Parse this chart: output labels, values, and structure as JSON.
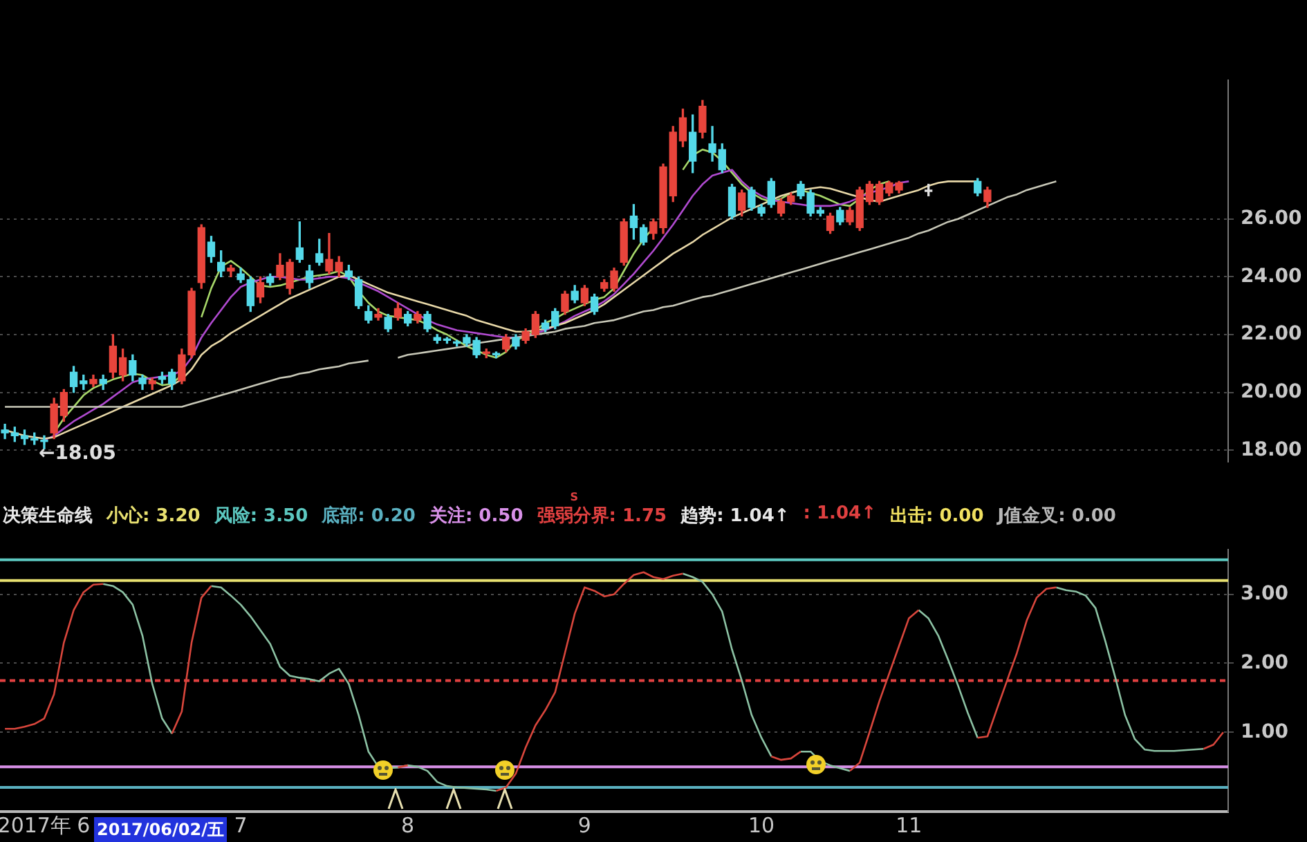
{
  "chart_data": [
    {
      "type": "candlestick",
      "categories": [
        null,
        null,
        null,
        null,
        null,
        null,
        null,
        null,
        null,
        null,
        null,
        null,
        null,
        null,
        null,
        null,
        null,
        null,
        null,
        null,
        null,
        null,
        null,
        null,
        null,
        null,
        null,
        null,
        null,
        null,
        null,
        null,
        null,
        null,
        null,
        null,
        null,
        null,
        null,
        null,
        null,
        null,
        null,
        null,
        null,
        null,
        null,
        null,
        null,
        null,
        null,
        null,
        null,
        null,
        null,
        null,
        null,
        null,
        null,
        null,
        null,
        null,
        null,
        null,
        null,
        null,
        null,
        null,
        null,
        null,
        null,
        null,
        null,
        null,
        null,
        null,
        null,
        null,
        null,
        null,
        null,
        null,
        null,
        null,
        null,
        null,
        null,
        null,
        null,
        null,
        null,
        null,
        null,
        null,
        null,
        null,
        null,
        null,
        null,
        null,
        null,
        null,
        null,
        null,
        null,
        null,
        null,
        null,
        null,
        null,
        null,
        null,
        null,
        null,
        null,
        null,
        null,
        null,
        null,
        null,
        null,
        null,
        null,
        null,
        null
      ],
      "ohlc": [
        [
          18.7,
          18.9,
          18.4,
          18.6
        ],
        [
          18.6,
          18.8,
          18.3,
          18.5
        ],
        [
          18.5,
          18.7,
          18.2,
          18.4
        ],
        [
          18.4,
          18.6,
          18.2,
          18.35
        ],
        [
          18.35,
          18.5,
          18.05,
          18.3
        ],
        [
          18.6,
          19.8,
          18.4,
          19.6
        ],
        [
          19.2,
          20.1,
          19.0,
          20.0
        ],
        [
          20.7,
          20.9,
          20.0,
          20.2
        ],
        [
          20.4,
          20.6,
          20.1,
          20.3
        ],
        [
          20.3,
          20.6,
          20.2,
          20.45
        ],
        [
          20.45,
          20.6,
          20.1,
          20.3
        ],
        [
          20.7,
          22.0,
          20.5,
          21.6
        ],
        [
          20.6,
          21.5,
          20.4,
          21.2
        ],
        [
          21.1,
          21.3,
          20.4,
          20.6
        ],
        [
          20.5,
          20.6,
          20.1,
          20.3
        ],
        [
          20.3,
          20.5,
          20.1,
          20.4
        ],
        [
          20.55,
          20.7,
          20.3,
          20.45
        ],
        [
          20.7,
          20.8,
          20.1,
          20.3
        ],
        [
          20.4,
          21.5,
          20.3,
          21.3
        ],
        [
          21.3,
          23.6,
          21.2,
          23.5
        ],
        [
          23.8,
          25.8,
          23.6,
          25.7
        ],
        [
          25.2,
          25.4,
          24.5,
          24.7
        ],
        [
          24.5,
          24.9,
          24.0,
          24.2
        ],
        [
          24.2,
          24.4,
          24.0,
          24.3
        ],
        [
          24.1,
          24.3,
          23.8,
          23.9
        ],
        [
          23.9,
          24.0,
          22.8,
          23.0
        ],
        [
          23.3,
          24.0,
          23.1,
          23.8
        ],
        [
          24.0,
          24.1,
          23.7,
          23.8
        ],
        [
          24.0,
          24.8,
          23.9,
          24.4
        ],
        [
          23.6,
          24.6,
          23.4,
          24.5
        ],
        [
          25.0,
          25.9,
          24.5,
          24.6
        ],
        [
          24.2,
          24.4,
          23.6,
          23.8
        ],
        [
          24.8,
          25.3,
          24.4,
          24.5
        ],
        [
          24.2,
          25.5,
          24.1,
          24.6
        ],
        [
          24.2,
          24.7,
          24.0,
          24.5
        ],
        [
          24.2,
          24.4,
          23.9,
          24.0
        ],
        [
          23.9,
          24.0,
          22.9,
          23.0
        ],
        [
          22.8,
          23.0,
          22.4,
          22.5
        ],
        [
          22.6,
          22.9,
          22.5,
          22.7
        ],
        [
          22.6,
          22.7,
          22.1,
          22.2
        ],
        [
          22.6,
          23.1,
          22.5,
          22.9
        ],
        [
          22.7,
          22.8,
          22.3,
          22.4
        ],
        [
          22.5,
          22.8,
          22.4,
          22.7
        ],
        [
          22.7,
          22.8,
          22.1,
          22.2
        ],
        [
          21.9,
          22.0,
          21.7,
          21.8
        ],
        [
          21.85,
          21.9,
          21.7,
          21.8
        ],
        [
          21.75,
          21.8,
          21.6,
          21.7
        ],
        [
          21.9,
          22.0,
          21.6,
          21.7
        ],
        [
          21.8,
          21.9,
          21.2,
          21.3
        ],
        [
          21.35,
          21.5,
          21.2,
          21.4
        ],
        [
          21.35,
          21.4,
          21.2,
          21.3
        ],
        [
          21.5,
          22.0,
          21.4,
          21.9
        ],
        [
          21.9,
          22.0,
          21.5,
          21.6
        ],
        [
          21.8,
          22.2,
          21.7,
          22.1
        ],
        [
          22.0,
          22.8,
          21.9,
          22.7
        ],
        [
          22.4,
          22.5,
          22.1,
          22.2
        ],
        [
          22.8,
          22.9,
          22.2,
          22.3
        ],
        [
          22.8,
          23.5,
          22.7,
          23.4
        ],
        [
          23.5,
          23.7,
          23.1,
          23.2
        ],
        [
          23.1,
          23.7,
          23.0,
          23.6
        ],
        [
          23.3,
          23.4,
          22.7,
          22.8
        ],
        [
          23.6,
          23.9,
          23.5,
          23.8
        ],
        [
          23.6,
          24.3,
          23.5,
          24.2
        ],
        [
          24.5,
          26.0,
          24.4,
          25.9
        ],
        [
          26.1,
          26.5,
          25.3,
          25.7
        ],
        [
          25.7,
          25.8,
          25.1,
          25.2
        ],
        [
          25.5,
          26.0,
          25.3,
          25.9
        ],
        [
          25.7,
          27.9,
          25.5,
          27.8
        ],
        [
          26.8,
          29.2,
          26.6,
          29.0
        ],
        [
          28.7,
          29.8,
          28.5,
          29.5
        ],
        [
          29.0,
          29.6,
          27.6,
          28.0
        ],
        [
          29.0,
          30.1,
          28.8,
          29.9
        ],
        [
          28.6,
          29.2,
          28.0,
          28.3
        ],
        [
          28.4,
          28.6,
          27.6,
          27.7
        ],
        [
          27.1,
          27.2,
          26.0,
          26.1
        ],
        [
          26.3,
          27.0,
          26.1,
          26.9
        ],
        [
          27.0,
          27.1,
          26.3,
          26.4
        ],
        [
          26.4,
          26.5,
          26.1,
          26.2
        ],
        [
          27.3,
          27.4,
          26.4,
          26.5
        ],
        [
          26.2,
          26.7,
          26.1,
          26.6
        ],
        [
          26.6,
          26.9,
          26.5,
          26.8
        ],
        [
          27.2,
          27.3,
          26.7,
          26.8
        ],
        [
          26.9,
          27.0,
          26.1,
          26.2
        ],
        [
          26.3,
          26.4,
          26.1,
          26.2
        ],
        [
          25.6,
          26.2,
          25.5,
          26.1
        ],
        [
          26.3,
          26.4,
          25.8,
          25.9
        ],
        [
          25.9,
          26.4,
          25.8,
          26.3
        ],
        [
          25.7,
          27.1,
          25.6,
          27.0
        ],
        [
          26.6,
          27.3,
          26.5,
          27.2
        ],
        [
          26.6,
          27.3,
          26.5,
          27.2
        ],
        [
          26.9,
          27.3,
          26.8,
          27.25
        ],
        [
          27.0,
          27.3,
          26.9,
          27.25
        ],
        null,
        null,
        [
          26.95,
          27.2,
          26.8,
          27.0
        ],
        null,
        null,
        null,
        null,
        [
          27.3,
          27.4,
          26.8,
          26.9
        ],
        [
          26.6,
          27.1,
          26.4,
          27.0
        ],
        null,
        null,
        null,
        null,
        null,
        null,
        null,
        null,
        null,
        null,
        null,
        null,
        null,
        null,
        null,
        null,
        null,
        null,
        null,
        null,
        null,
        null,
        null,
        null
      ],
      "colors": [
        "#54d8e8",
        "#54d8e8",
        "#54d8e8",
        "#54d8e8",
        "#54d8e8",
        "#e8453c",
        "#e8453c",
        "#54d8e8",
        "#54d8e8",
        "#e8453c",
        "#54d8e8",
        "#e8453c",
        "#e8453c",
        "#54d8e8",
        "#54d8e8",
        "#e8453c",
        "#54d8e8",
        "#54d8e8",
        "#e8453c",
        "#e8453c",
        "#e8453c",
        "#54d8e8",
        "#54d8e8",
        "#e8453c",
        "#54d8e8",
        "#54d8e8",
        "#e8453c",
        "#54d8e8",
        "#e8453c",
        "#e8453c",
        "#54d8e8",
        "#54d8e8",
        "#54d8e8",
        "#e8453c",
        "#e8453c",
        "#54d8e8",
        "#54d8e8",
        "#54d8e8",
        "#e8453c",
        "#54d8e8",
        "#e8453c",
        "#54d8e8",
        "#e8453c",
        "#54d8e8",
        "#54d8e8",
        "#54d8e8",
        "#54d8e8",
        "#54d8e8",
        "#54d8e8",
        "#e8453c",
        "#54d8e8",
        "#e8453c",
        "#54d8e8",
        "#e8453c",
        "#e8453c",
        "#54d8e8",
        "#54d8e8",
        "#e8453c",
        "#54d8e8",
        "#e8453c",
        "#54d8e8",
        "#e8453c",
        "#e8453c",
        "#e8453c",
        "#54d8e8",
        "#54d8e8",
        "#e8453c",
        "#e8453c",
        "#e8453c",
        "#e8453c",
        "#54d8e8",
        "#e8453c",
        "#54d8e8",
        "#54d8e8",
        "#54d8e8",
        "#e8453c",
        "#54d8e8",
        "#54d8e8",
        "#54d8e8",
        "#e8453c",
        "#e8453c",
        "#54d8e8",
        "#54d8e8",
        "#54d8e8",
        "#e8453c",
        "#54d8e8",
        "#e8453c",
        "#e8453c",
        "#e8453c",
        "#e8453c",
        "#e8453c",
        "#e8453c",
        null,
        null,
        "#e0e0e0",
        null,
        null,
        null,
        null,
        "#54d8e8",
        "#e8453c",
        null,
        null,
        null,
        null,
        null,
        null,
        null,
        null,
        null,
        null,
        null,
        null,
        null,
        null,
        null,
        null,
        null,
        null,
        null,
        null,
        null,
        null,
        null,
        null
      ],
      "series": [
        {
          "type": "line",
          "color": "#c8c8b8",
          "values": [
            19.5,
            19.5,
            19.5,
            19.5,
            19.5,
            19.5,
            19.5,
            19.5,
            19.5,
            19.5,
            19.5,
            19.5,
            19.5,
            19.5,
            19.5,
            19.5,
            19.5,
            19.5,
            19.5,
            19.6,
            19.7,
            19.8,
            19.9,
            20.0,
            20.1,
            20.2,
            20.3,
            20.4,
            20.5,
            20.55,
            20.65,
            20.7,
            20.8,
            20.85,
            20.9,
            21.0,
            21.05,
            21.1,
            null,
            null,
            21.2,
            21.3,
            21.35,
            21.4,
            21.45,
            21.5,
            21.55,
            21.6,
            21.7,
            21.75,
            21.8,
            21.85,
            21.9,
            21.95,
            22.0,
            22.05,
            22.1,
            22.2,
            22.25,
            22.3,
            22.4,
            22.45,
            22.5,
            22.6,
            22.7,
            22.8,
            22.85,
            22.95,
            23.0,
            23.1,
            23.2,
            23.3,
            23.35,
            23.45,
            23.55,
            23.65,
            23.75,
            23.85,
            23.95,
            24.05,
            24.15,
            24.25,
            24.35,
            24.45,
            24.55,
            24.65,
            24.75,
            24.85,
            24.95,
            25.05,
            25.15,
            25.25,
            25.35,
            25.5,
            25.6,
            25.75,
            25.9,
            26.0,
            26.15,
            26.3,
            26.45,
            26.6,
            26.75,
            26.85,
            27.0,
            27.1,
            27.2,
            27.3,
            null,
            null,
            null,
            null,
            null,
            null,
            null,
            null,
            null,
            null,
            null,
            null,
            null,
            null,
            null,
            null,
            null
          ]
        },
        {
          "type": "line",
          "color": "#e8d8a8",
          "values": [
            18.7,
            18.6,
            18.5,
            18.45,
            18.4,
            18.45,
            18.6,
            18.75,
            18.9,
            19.05,
            19.2,
            19.35,
            19.5,
            19.65,
            19.8,
            19.95,
            20.1,
            20.25,
            20.45,
            20.8,
            21.3,
            21.6,
            21.8,
            22.05,
            22.25,
            22.45,
            22.65,
            22.85,
            23.05,
            23.25,
            23.4,
            23.55,
            23.7,
            23.85,
            24.0,
            24.05,
            23.9,
            23.75,
            23.6,
            23.45,
            23.35,
            23.25,
            23.15,
            23.05,
            22.95,
            22.85,
            22.75,
            22.65,
            22.5,
            22.4,
            22.3,
            22.2,
            22.1,
            22.1,
            22.15,
            22.2,
            22.3,
            22.4,
            22.55,
            22.7,
            22.85,
            23.05,
            23.3,
            23.55,
            23.8,
            24.05,
            24.3,
            24.55,
            24.8,
            25.0,
            25.2,
            25.45,
            25.65,
            25.85,
            26.05,
            26.2,
            26.35,
            26.5,
            26.65,
            26.8,
            26.9,
            27.0,
            27.05,
            27.1,
            27.05,
            26.95,
            26.85,
            26.75,
            26.65,
            26.6,
            26.7,
            26.8,
            26.9,
            27.0,
            27.15,
            27.25,
            27.3,
            27.3,
            27.3,
            27.3,
            null,
            null,
            null,
            null,
            null,
            null,
            null,
            null,
            null,
            null,
            null,
            null,
            null,
            null,
            null,
            null,
            null,
            null,
            null,
            null,
            null,
            null,
            null,
            null,
            null
          ]
        },
        {
          "type": "line",
          "color": "#b04ad0",
          "values": [
            null,
            null,
            null,
            null,
            18.35,
            18.5,
            18.75,
            19.0,
            19.2,
            19.4,
            19.6,
            19.85,
            20.1,
            20.35,
            20.45,
            20.5,
            20.55,
            20.6,
            20.75,
            21.2,
            21.9,
            22.4,
            22.85,
            23.3,
            23.65,
            23.8,
            23.9,
            24.0,
            24.0,
            23.95,
            23.9,
            23.9,
            23.95,
            24.0,
            24.0,
            23.95,
            23.8,
            23.65,
            23.5,
            23.3,
            23.1,
            22.9,
            22.7,
            22.5,
            22.35,
            22.25,
            22.15,
            22.1,
            22.05,
            22.0,
            21.95,
            21.9,
            21.9,
            21.95,
            22.05,
            22.15,
            22.3,
            22.45,
            22.65,
            22.8,
            22.95,
            23.15,
            23.4,
            23.75,
            24.1,
            24.5,
            24.9,
            25.35,
            25.8,
            26.3,
            26.8,
            27.2,
            27.5,
            27.6,
            27.7,
            27.3,
            27.0,
            26.8,
            26.65,
            26.6,
            26.55,
            26.5,
            26.45,
            26.45,
            26.45,
            26.5,
            26.6,
            26.75,
            26.9,
            27.0,
            27.1,
            27.25,
            27.3,
            null,
            null,
            null,
            null,
            null,
            null,
            null,
            null,
            null,
            null,
            null,
            null,
            null,
            null,
            null,
            null,
            null,
            null,
            null,
            null,
            null,
            null,
            null,
            null,
            null,
            null,
            null,
            null,
            null,
            null,
            null,
            null
          ]
        },
        {
          "type": "line",
          "color": "#a8d86a",
          "values": [
            null,
            null,
            null,
            null,
            null,
            18.6,
            19.1,
            19.5,
            19.9,
            20.15,
            20.3,
            20.45,
            20.55,
            20.65,
            20.6,
            20.4,
            20.25,
            20.3,
            20.6,
            null,
            22.6,
            23.6,
            24.35,
            24.55,
            24.3,
            24.0,
            23.7,
            23.65,
            23.7,
            23.8,
            23.9,
            24.0,
            24.05,
            24.1,
            24.2,
            24.0,
            23.5,
            23.1,
            22.8,
            22.65,
            22.6,
            22.55,
            22.5,
            22.35,
            22.15,
            22.0,
            21.8,
            21.6,
            21.45,
            21.3,
            21.2,
            21.4,
            21.8,
            21.95,
            22.15,
            22.4,
            22.55,
            22.75,
            22.9,
            23.05,
            23.2,
            23.3,
            23.6,
            24.2,
            24.8,
            25.3,
            25.7,
            null,
            null,
            27.7,
            28.2,
            28.4,
            28.3,
            28.0,
            27.6,
            27.2,
            26.9,
            26.7,
            26.6,
            26.7,
            26.9,
            27.0,
            26.9,
            26.8,
            26.65,
            26.5,
            26.45,
            26.7,
            27.0,
            27.2,
            27.3,
            null,
            null,
            null,
            null,
            null,
            null,
            null,
            null,
            null,
            null,
            null,
            null,
            null,
            null,
            null,
            null,
            null,
            null,
            null,
            null,
            null,
            null,
            null,
            null,
            null,
            null,
            null,
            null,
            null,
            null,
            null,
            null,
            null,
            null
          ]
        }
      ],
      "ylim": [
        17.6,
        30.8
      ],
      "yticks": [
        {
          "value": 18,
          "label": "18.00"
        },
        {
          "value": 20,
          "label": "20.00"
        },
        {
          "value": 22,
          "label": "22.00"
        },
        {
          "value": 24,
          "label": "24.00"
        },
        {
          "value": 26,
          "label": "26.00"
        }
      ],
      "grid": "y",
      "annotations": [
        "←18.05"
      ]
    },
    {
      "type": "line",
      "title": "决策生命线",
      "categories": [
        null,
        null,
        null,
        "2017年",
        null,
        null,
        null,
        null,
        "6",
        null,
        null,
        null,
        null,
        null,
        null,
        null,
        null,
        null,
        null,
        null,
        null,
        null,
        null,
        null,
        "7",
        null,
        null,
        null,
        null,
        null,
        null,
        null,
        null,
        null,
        null,
        null,
        null,
        null,
        null,
        null,
        null,
        "8",
        null,
        null,
        null,
        null,
        null,
        null,
        null,
        null,
        null,
        null,
        null,
        null,
        null,
        null,
        null,
        null,
        null,
        "9",
        null,
        null,
        null,
        null,
        null,
        null,
        null,
        null,
        null,
        null,
        null,
        null,
        null,
        null,
        null,
        null,
        null,
        "10",
        null,
        null,
        null,
        null,
        null,
        null,
        null,
        null,
        null,
        null,
        null,
        null,
        null,
        null,
        "11",
        null,
        null,
        null,
        null,
        null,
        null,
        null,
        null,
        null,
        null,
        null,
        null,
        null,
        null,
        null,
        null,
        null,
        null,
        null,
        null,
        null,
        null,
        null,
        null,
        null,
        null,
        null,
        null,
        null,
        null,
        null,
        null
      ],
      "series": [
        {
          "color": "#d9463c",
          "values": [
            1.05,
            1.05,
            1.08,
            1.12,
            1.2,
            1.55,
            2.3,
            2.77,
            3.03,
            3.14,
            3.15,
            null,
            null,
            null,
            null,
            null,
            null,
            0.98,
            1.3,
            2.3,
            2.95,
            3.12,
            null,
            null,
            null,
            null,
            null,
            null,
            null,
            null,
            null,
            null,
            null,
            null,
            null,
            null,
            null,
            null,
            null,
            null,
            0.49,
            0.52,
            null,
            null,
            null,
            null,
            null,
            null,
            null,
            null,
            0.15,
            0.2,
            0.4,
            0.78,
            1.1,
            1.32,
            1.58,
            2.15,
            2.72,
            3.1,
            3.05,
            2.97,
            3.0,
            3.15,
            3.28,
            3.32,
            3.25,
            3.22,
            3.27,
            3.3,
            null,
            null,
            null,
            null,
            null,
            null,
            null,
            null,
            0.65,
            0.6,
            0.62,
            0.72,
            null,
            null,
            null,
            null,
            0.44,
            0.56,
            1.0,
            1.45,
            1.85,
            2.25,
            2.65,
            2.77,
            null,
            null,
            null,
            null,
            null,
            0.92,
            0.94,
            1.35,
            1.75,
            2.15,
            2.62,
            2.95,
            3.08,
            3.1,
            null,
            null,
            null,
            null,
            null,
            null,
            null,
            null,
            null,
            null,
            null,
            null,
            null,
            null,
            0.76,
            0.82,
            1.0
          ]
        },
        {
          "color": "#8cc2a4",
          "values": [
            null,
            null,
            null,
            null,
            null,
            null,
            null,
            null,
            null,
            null,
            3.15,
            3.12,
            3.03,
            2.85,
            2.4,
            1.7,
            1.2,
            0.98,
            null,
            null,
            null,
            3.12,
            3.1,
            2.98,
            2.85,
            2.68,
            2.48,
            2.28,
            1.95,
            1.82,
            1.79,
            1.77,
            1.74,
            1.85,
            1.92,
            1.7,
            1.25,
            0.72,
            0.5,
            0.48,
            0.49,
            0.52,
            0.5,
            0.44,
            0.28,
            0.22,
            0.2,
            0.19,
            0.18,
            0.17,
            0.15,
            null,
            null,
            null,
            null,
            null,
            null,
            null,
            null,
            null,
            null,
            null,
            null,
            null,
            null,
            null,
            null,
            null,
            null,
            3.3,
            3.25,
            3.18,
            3.0,
            2.75,
            2.2,
            1.75,
            1.25,
            0.92,
            0.65,
            null,
            null,
            0.72,
            0.72,
            0.58,
            0.52,
            0.48,
            0.44,
            null,
            null,
            null,
            null,
            null,
            null,
            2.77,
            2.65,
            2.4,
            2.05,
            1.68,
            1.28,
            0.92,
            null,
            null,
            null,
            null,
            null,
            null,
            null,
            3.1,
            3.06,
            3.04,
            2.98,
            2.8,
            2.32,
            1.8,
            1.25,
            0.9,
            0.75,
            0.73,
            0.73,
            0.73,
            0.74,
            0.75,
            0.76,
            null,
            null
          ]
        }
      ],
      "ylim": [
        -0.15,
        3.65
      ],
      "yticks": [
        {
          "value": 1,
          "label": "1.00"
        },
        {
          "value": 2,
          "label": "2.00"
        },
        {
          "value": 3,
          "label": "3.00"
        }
      ],
      "grid": "y",
      "ref_lines": [
        {
          "axis": "y",
          "value": 3.2,
          "label": "小心: 3.20",
          "color": "#e8e070"
        },
        {
          "axis": "y",
          "value": 3.5,
          "label": "风险: 3.50",
          "color": "#5cc8c0"
        },
        {
          "axis": "y",
          "value": 0.2,
          "label": "底部: 0.20",
          "color": "#5ab0c0"
        },
        {
          "axis": "y",
          "value": 0.5,
          "label": "关注: 0.50",
          "color": "#d890e8"
        },
        {
          "axis": "y",
          "value": 1.75,
          "label": "强弱分界: 1.75",
          "color": "#e04040",
          "line_style": "dashed"
        }
      ],
      "annotations": [
        "S",
        "趋势: 1.04↑",
        ": 1.04↑",
        "出击: 0.00",
        "J值金叉: 0.00",
        "2017/06/02/五"
      ]
    }
  ]
}
